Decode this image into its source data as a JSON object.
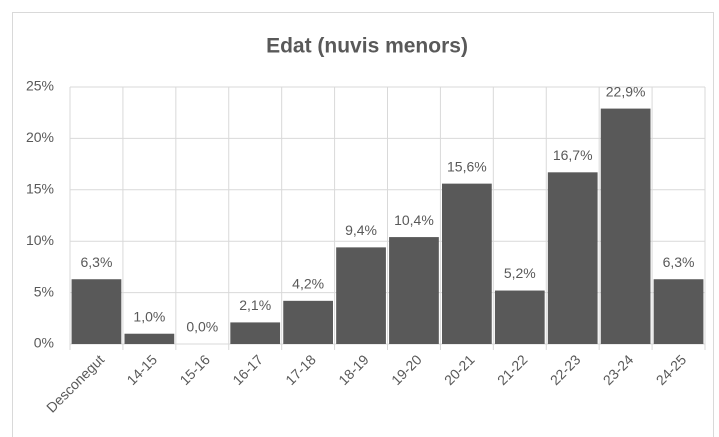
{
  "chart_data": {
    "type": "bar",
    "title": "Edat (nuvis menors)",
    "categories": [
      "Desconegut",
      "14-15",
      "15-16",
      "16-17",
      "17-18",
      "18-19",
      "19-20",
      "20-21",
      "21-22",
      "22-23",
      "23-24",
      "24-25"
    ],
    "values": [
      6.3,
      1.0,
      0.0,
      2.1,
      4.2,
      9.4,
      10.4,
      15.6,
      5.2,
      16.7,
      22.9,
      6.3
    ],
    "value_labels": [
      "6,3%",
      "1,0%",
      "0,0%",
      "2,1%",
      "4,2%",
      "9,4%",
      "10,4%",
      "15,6%",
      "5,2%",
      "16,7%",
      "22,9%",
      "6,3%"
    ],
    "color": "#595959",
    "ylim": [
      0,
      25
    ],
    "yticks": [
      {
        "value": 0,
        "label": "0%"
      },
      {
        "value": 5,
        "label": "5%"
      },
      {
        "value": 10,
        "label": "10%"
      },
      {
        "value": 15,
        "label": "15%"
      },
      {
        "value": 20,
        "label": "20%"
      },
      {
        "value": 25,
        "label": "25%"
      }
    ],
    "grid": true
  }
}
